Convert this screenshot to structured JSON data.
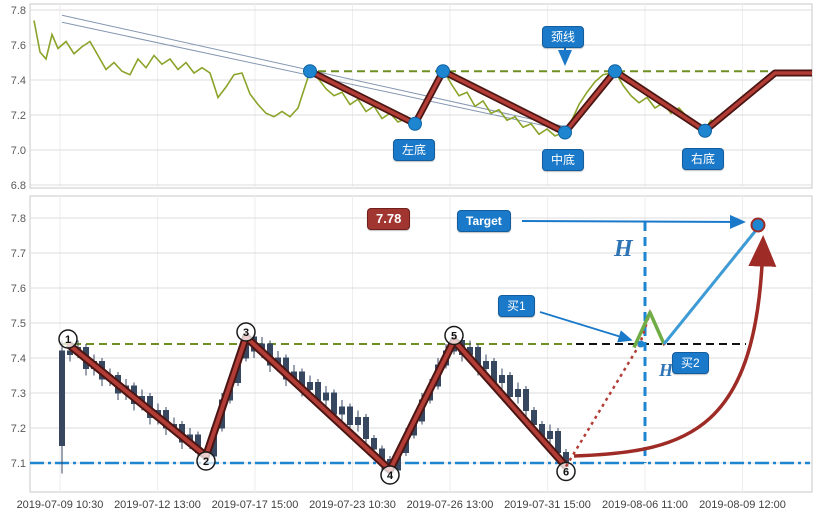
{
  "colors": {
    "accent_blue": "#1b79c9",
    "light_blue_line": "#3d9bd6",
    "dark_red": "#9e2b25",
    "zigzag_red": "#b23c36",
    "zigzag_edge": "#4a1512",
    "olive_neckline": "#6f8f23",
    "price_green": "#8aa329",
    "breakout_green": "#70ad47",
    "candle": "#374760",
    "grid": "#dcdcdc",
    "axis_text": "#595959"
  },
  "chart_data": [
    {
      "type": "line",
      "panel": "top",
      "title": "",
      "ylim": [
        6.8,
        7.8
      ],
      "yticks": [
        "7.8",
        "7.6",
        "7.4",
        "7.2",
        "7.0",
        "6.8"
      ],
      "grid": true,
      "neckline_price": 7.45,
      "price_line": [
        [
          34,
          7.74
        ],
        [
          40,
          7.56
        ],
        [
          46,
          7.52
        ],
        [
          52,
          7.66
        ],
        [
          58,
          7.58
        ],
        [
          66,
          7.62
        ],
        [
          74,
          7.55
        ],
        [
          82,
          7.59
        ],
        [
          90,
          7.62
        ],
        [
          98,
          7.54
        ],
        [
          106,
          7.46
        ],
        [
          114,
          7.5
        ],
        [
          122,
          7.45
        ],
        [
          130,
          7.43
        ],
        [
          138,
          7.52
        ],
        [
          146,
          7.47
        ],
        [
          154,
          7.54
        ],
        [
          162,
          7.49
        ],
        [
          170,
          7.52
        ],
        [
          178,
          7.46
        ],
        [
          186,
          7.5
        ],
        [
          194,
          7.44
        ],
        [
          202,
          7.47
        ],
        [
          210,
          7.44
        ],
        [
          218,
          7.3
        ],
        [
          226,
          7.36
        ],
        [
          234,
          7.43
        ],
        [
          242,
          7.44
        ],
        [
          250,
          7.32
        ],
        [
          258,
          7.26
        ],
        [
          266,
          7.21
        ],
        [
          274,
          7.19
        ],
        [
          282,
          7.22
        ],
        [
          290,
          7.19
        ],
        [
          298,
          7.24
        ],
        [
          306,
          7.38
        ],
        [
          310,
          7.45
        ],
        [
          318,
          7.41
        ],
        [
          326,
          7.35
        ],
        [
          334,
          7.31
        ],
        [
          342,
          7.33
        ],
        [
          350,
          7.26
        ],
        [
          358,
          7.29
        ],
        [
          366,
          7.22
        ],
        [
          374,
          7.25
        ],
        [
          382,
          7.18
        ],
        [
          390,
          7.21
        ],
        [
          398,
          7.16
        ],
        [
          406,
          7.18
        ],
        [
          415,
          7.14
        ],
        [
          423,
          7.24
        ],
        [
          431,
          7.34
        ],
        [
          438,
          7.41
        ],
        [
          443,
          7.46
        ],
        [
          451,
          7.38
        ],
        [
          459,
          7.31
        ],
        [
          467,
          7.33
        ],
        [
          475,
          7.25
        ],
        [
          483,
          7.28
        ],
        [
          491,
          7.21
        ],
        [
          499,
          7.23
        ],
        [
          507,
          7.17
        ],
        [
          515,
          7.19
        ],
        [
          523,
          7.13
        ],
        [
          531,
          7.15
        ],
        [
          539,
          7.09
        ],
        [
          547,
          7.12
        ],
        [
          555,
          7.08
        ],
        [
          563,
          7.1
        ],
        [
          571,
          7.16
        ],
        [
          579,
          7.26
        ],
        [
          587,
          7.33
        ],
        [
          595,
          7.39
        ],
        [
          603,
          7.43
        ],
        [
          611,
          7.44
        ],
        [
          615,
          7.45
        ],
        [
          623,
          7.37
        ],
        [
          631,
          7.31
        ],
        [
          639,
          7.27
        ],
        [
          647,
          7.3
        ],
        [
          655,
          7.24
        ],
        [
          663,
          7.27
        ],
        [
          671,
          7.21
        ],
        [
          679,
          7.24
        ],
        [
          687,
          7.19
        ],
        [
          695,
          7.13
        ],
        [
          703,
          7.1
        ],
        [
          711,
          7.17
        ],
        [
          717,
          7.15
        ]
      ],
      "pattern_points": [
        [
          310,
          7.45
        ],
        [
          415,
          7.15
        ],
        [
          443,
          7.45
        ],
        [
          565,
          7.1
        ],
        [
          615,
          7.45
        ],
        [
          705,
          7.11
        ],
        [
          775,
          7.44
        ],
        [
          812,
          7.44
        ]
      ],
      "pivot_dots": [
        [
          310,
          7.45
        ],
        [
          415,
          7.15
        ],
        [
          443,
          7.45
        ],
        [
          565,
          7.1
        ],
        [
          615,
          7.45
        ],
        [
          705,
          7.11
        ]
      ],
      "trend_lines": [
        [
          62,
          7.77,
          568,
          7.13
        ],
        [
          62,
          7.73,
          568,
          7.11
        ]
      ],
      "labels": {
        "neckline": "颈线",
        "left_bottom": "左底",
        "middle_bottom": "中底",
        "right_bottom": "右底"
      }
    },
    {
      "type": "candlestick",
      "panel": "bottom",
      "title": "",
      "ylim": [
        7.05,
        7.85
      ],
      "yticks": [
        "7.8",
        "7.7",
        "7.6",
        "7.5",
        "7.4",
        "7.3",
        "7.2",
        "7.1"
      ],
      "xticklabels": [
        "2019-07-09 10:30",
        "2019-07-12 13:00",
        "2019-07-17 15:00",
        "2019-07-23 10:30",
        "2019-07-26 13:00",
        "2019-07-31 15:00",
        "2019-08-06 11:00",
        "2019-08-09 12:00"
      ],
      "grid": true,
      "neckline_price": 7.44,
      "support_price": 7.1,
      "target_price": 7.78,
      "candles_format": "[open, close, low, high]",
      "candles": [
        [
          7.15,
          7.42,
          7.07,
          7.45
        ],
        [
          7.42,
          7.41,
          7.39,
          7.44
        ],
        [
          7.41,
          7.43,
          7.4,
          7.45
        ],
        [
          7.43,
          7.37,
          7.35,
          7.44
        ],
        [
          7.37,
          7.39,
          7.35,
          7.41
        ],
        [
          7.39,
          7.34,
          7.32,
          7.4
        ],
        [
          7.34,
          7.35,
          7.32,
          7.37
        ],
        [
          7.35,
          7.3,
          7.28,
          7.36
        ],
        [
          7.3,
          7.32,
          7.28,
          7.34
        ],
        [
          7.32,
          7.27,
          7.25,
          7.33
        ],
        [
          7.27,
          7.29,
          7.25,
          7.31
        ],
        [
          7.29,
          7.23,
          7.21,
          7.3
        ],
        [
          7.23,
          7.25,
          7.21,
          7.27
        ],
        [
          7.25,
          7.2,
          7.18,
          7.26
        ],
        [
          7.2,
          7.21,
          7.18,
          7.23
        ],
        [
          7.21,
          7.16,
          7.14,
          7.22
        ],
        [
          7.16,
          7.18,
          7.14,
          7.2
        ],
        [
          7.18,
          7.13,
          7.11,
          7.19
        ],
        [
          7.13,
          7.12,
          7.09,
          7.15
        ],
        [
          7.12,
          7.2,
          7.11,
          7.22
        ],
        [
          7.2,
          7.28,
          7.19,
          7.3
        ],
        [
          7.28,
          7.33,
          7.27,
          7.35
        ],
        [
          7.33,
          7.4,
          7.32,
          7.42
        ],
        [
          7.4,
          7.46,
          7.39,
          7.47
        ],
        [
          7.46,
          7.42,
          7.4,
          7.47
        ],
        [
          7.42,
          7.44,
          7.4,
          7.46
        ],
        [
          7.44,
          7.38,
          7.36,
          7.45
        ],
        [
          7.38,
          7.4,
          7.36,
          7.42
        ],
        [
          7.4,
          7.34,
          7.32,
          7.41
        ],
        [
          7.34,
          7.36,
          7.32,
          7.38
        ],
        [
          7.36,
          7.31,
          7.29,
          7.37
        ],
        [
          7.31,
          7.33,
          7.29,
          7.35
        ],
        [
          7.33,
          7.28,
          7.26,
          7.34
        ],
        [
          7.28,
          7.3,
          7.26,
          7.32
        ],
        [
          7.3,
          7.24,
          7.22,
          7.31
        ],
        [
          7.24,
          7.26,
          7.22,
          7.28
        ],
        [
          7.26,
          7.21,
          7.19,
          7.27
        ],
        [
          7.21,
          7.23,
          7.19,
          7.25
        ],
        [
          7.23,
          7.17,
          7.15,
          7.24
        ],
        [
          7.17,
          7.14,
          7.12,
          7.18
        ],
        [
          7.14,
          7.11,
          7.08,
          7.15
        ],
        [
          7.11,
          7.08,
          7.06,
          7.12
        ],
        [
          7.08,
          7.13,
          7.07,
          7.15
        ],
        [
          7.13,
          7.18,
          7.12,
          7.2
        ],
        [
          7.18,
          7.22,
          7.17,
          7.24
        ],
        [
          7.22,
          7.28,
          7.21,
          7.3
        ],
        [
          7.28,
          7.32,
          7.27,
          7.34
        ],
        [
          7.32,
          7.38,
          7.31,
          7.4
        ],
        [
          7.38,
          7.42,
          7.37,
          7.44
        ],
        [
          7.42,
          7.45,
          7.41,
          7.47
        ],
        [
          7.45,
          7.41,
          7.39,
          7.46
        ],
        [
          7.41,
          7.43,
          7.39,
          7.45
        ],
        [
          7.43,
          7.37,
          7.35,
          7.44
        ],
        [
          7.37,
          7.39,
          7.35,
          7.41
        ],
        [
          7.39,
          7.33,
          7.31,
          7.4
        ],
        [
          7.33,
          7.35,
          7.31,
          7.37
        ],
        [
          7.35,
          7.29,
          7.27,
          7.36
        ],
        [
          7.29,
          7.31,
          7.27,
          7.33
        ],
        [
          7.31,
          7.25,
          7.23,
          7.32
        ],
        [
          7.25,
          7.21,
          7.19,
          7.26
        ],
        [
          7.21,
          7.17,
          7.15,
          7.22
        ],
        [
          7.17,
          7.19,
          7.15,
          7.21
        ],
        [
          7.19,
          7.13,
          7.11,
          7.2
        ],
        [
          7.13,
          7.09,
          7.07,
          7.14
        ]
      ],
      "zigzag": [
        [
          68,
          7.44
        ],
        [
          206,
          7.12
        ],
        [
          246,
          7.46
        ],
        [
          390,
          7.08
        ],
        [
          454,
          7.45
        ],
        [
          566,
          7.09
        ]
      ],
      "pivot_numbers": [
        "1",
        "2",
        "3",
        "4",
        "5",
        "6"
      ],
      "breakout_path": [
        [
          634,
          7.43
        ],
        [
          650,
          7.53
        ],
        [
          664,
          7.44
        ]
      ],
      "projection_path": [
        [
          566,
          7.09
        ],
        [
          640,
          7.44
        ],
        [
          650,
          7.53
        ],
        [
          664,
          7.44
        ],
        [
          757,
          7.77
        ]
      ],
      "rally_line": [
        [
          664,
          7.44
        ],
        [
          756,
          7.765
        ]
      ],
      "labels": {
        "price_target": "7.78",
        "target": "Target",
        "buy1": "买1",
        "buy2": "买2",
        "h_upper": "H",
        "h_lower": "H"
      }
    }
  ]
}
